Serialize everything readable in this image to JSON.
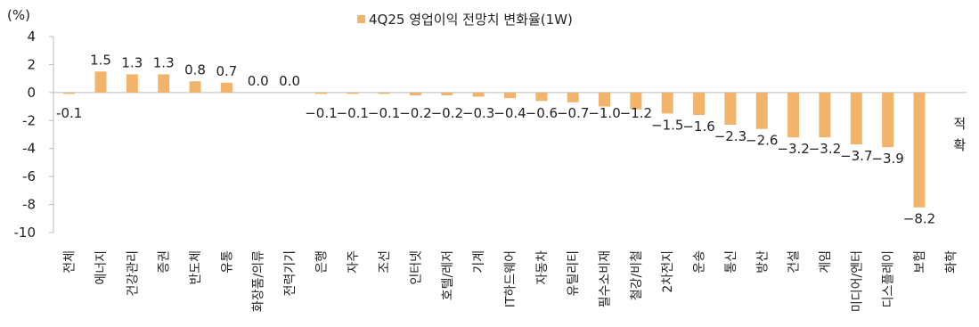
{
  "chart_data": {
    "type": "bar",
    "legend": {
      "label": "4Q25 영업이익 전망치 변화율(1W)",
      "placement": "top-center"
    },
    "unit": "(%)",
    "ylim": [
      -10,
      4
    ],
    "yticks": [
      4,
      2,
      0,
      -2,
      -4,
      -6,
      -8,
      -10
    ],
    "grid": false,
    "color": "#F2B36B",
    "categories": [
      "전체",
      "에너지",
      "건강관리",
      "증권",
      "반도체",
      "유통",
      "화장품/의류",
      "전력기기",
      "은행",
      "자주",
      "조선",
      "인터넷",
      "호텔/레저",
      "기계",
      "IT하드웨어",
      "자동차",
      "유틸리티",
      "필수소비재",
      "철강/비철",
      "2차전지",
      "운송",
      "통신",
      "방산",
      "건설",
      "게임",
      "미디어/엔터",
      "디스플레이",
      "보험",
      "화학"
    ],
    "values": [
      -0.1,
      1.5,
      1.3,
      1.3,
      0.8,
      0.7,
      0.0,
      0.0,
      -0.1,
      -0.1,
      -0.1,
      -0.2,
      -0.2,
      -0.3,
      -0.4,
      -0.6,
      -0.7,
      -1.0,
      -1.2,
      -1.5,
      -1.6,
      -2.3,
      -2.6,
      -3.2,
      -3.2,
      -3.7,
      -3.9,
      -8.2,
      null
    ],
    "value_labels": [
      "-0.1",
      "1.5",
      "1.3",
      "1.3",
      "0.8",
      "0.7",
      "0.0",
      "0.0",
      "−0.1",
      "−0.1",
      "−0.1",
      "−0.2",
      "−0.2",
      "−0.3",
      "−0.4",
      "−0.6",
      "−0.7",
      "−1.0",
      "−1.2",
      "−1.5",
      "−1.6",
      "−2.3",
      "−2.6",
      "−3.2",
      "−3.2",
      "−3.7",
      "−3.9",
      "−8.2",
      "적\n확"
    ]
  }
}
